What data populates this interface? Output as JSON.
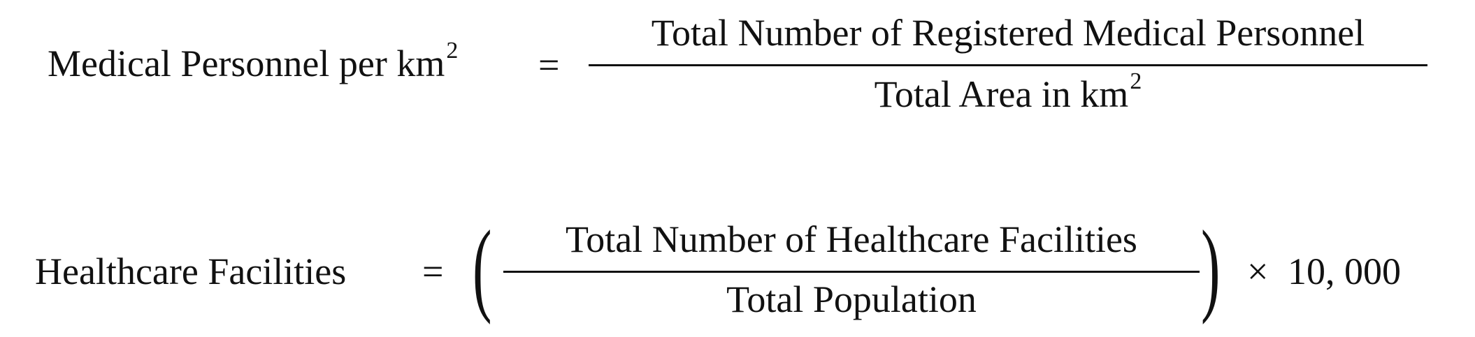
{
  "formula1": {
    "lhs_text": "Medical Personnel per km",
    "lhs_exponent": "2",
    "equals": "=",
    "numerator": "Total Number of Registered Medical Personnel",
    "denominator_text": "Total Area in km",
    "denominator_exponent": "2"
  },
  "formula2": {
    "lhs_text": "Healthcare Facilities",
    "equals": "=",
    "open_paren": "(",
    "numerator": "Total Number of Healthcare Facilities",
    "denominator": "Total Population",
    "close_paren": ")",
    "times": "×",
    "multiplier": "10, 000"
  }
}
